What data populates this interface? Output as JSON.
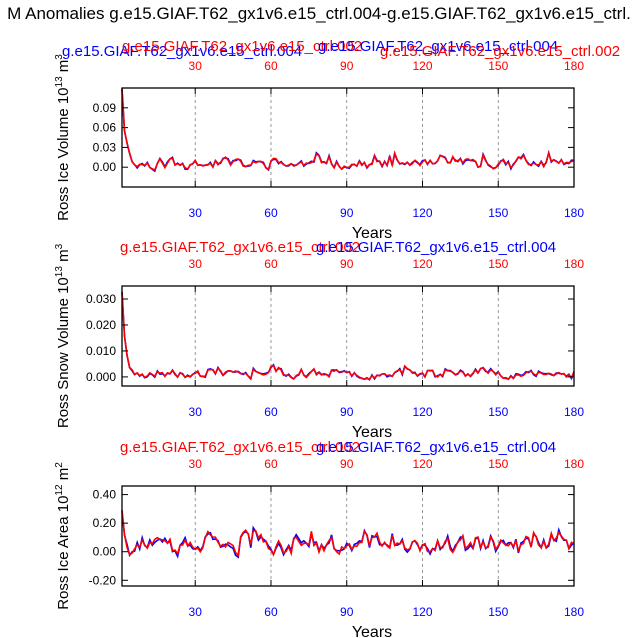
{
  "page_title": "M Anomalies g.e15.GIAF.T62_gx1v6.e15_ctrl.004-g.e15.GIAF.T62_gx1v6.e15_ctrl.",
  "colors": {
    "series_a": "#0000ff",
    "series_b": "#ff0000",
    "axis": "#000000",
    "grid": "#7f7f7f"
  },
  "chart_data": [
    {
      "type": "line",
      "ylabel": "Ross Ice Volume 10",
      "ylabel_exp": "13",
      "ylabel_unit": " m",
      "ylabel_unit_exp": "3",
      "xlabel": "Years",
      "top_left_label": "g.e15.GIAF.T62_gx1v6.e15_ctrl.004",
      "top_left_label_over": "g.e15.GIAF.T62_gx1v6.e15_ctrl.002",
      "top_right_label": "g.e15.GIAF.T62_gx1v6.e15_ctrl.004",
      "top_right_label_over": "g.e15.GIAF.T62_gx1v6.e15_ctrl.002",
      "xlim": [
        1,
        180
      ],
      "ylim": [
        -0.03,
        0.12
      ],
      "xticks": [
        "30",
        "60",
        "90",
        "120",
        "150",
        "180"
      ],
      "yticks": [
        "0.09",
        "0.06",
        "0.03",
        "0.00"
      ],
      "series": [
        {
          "name": "g.e15.GIAF.T62_gx1v6.e15_ctrl.004",
          "color": "#0000ff"
        },
        {
          "name": "g.e15.GIAF.T62_gx1v6.e15_ctrl.002",
          "color": "#ff0000"
        }
      ]
    },
    {
      "type": "line",
      "ylabel": "Ross Snow Volume 10",
      "ylabel_exp": "13",
      "ylabel_unit": " m",
      "ylabel_unit_exp": "3",
      "xlabel": "Years",
      "top_left_label": "g.e15.GIAF.T62_gx1v6.e15_ctrl.002",
      "top_right_label": "g.e15.GIAF.T62_gx1v6.e15_ctrl.004",
      "xlim": [
        1,
        180
      ],
      "ylim": [
        -0.0035,
        0.035
      ],
      "xticks": [
        "30",
        "60",
        "90",
        "120",
        "150",
        "180"
      ],
      "yticks": [
        "0.030",
        "0.020",
        "0.010",
        "0.000"
      ],
      "series": [
        {
          "name": "g.e15.GIAF.T62_gx1v6.e15_ctrl.004",
          "color": "#0000ff"
        },
        {
          "name": "g.e15.GIAF.T62_gx1v6.e15_ctrl.002",
          "color": "#ff0000"
        }
      ]
    },
    {
      "type": "line",
      "ylabel": "Ross Ice Area 10",
      "ylabel_exp": "12",
      "ylabel_unit": " m",
      "ylabel_unit_exp": "2",
      "xlabel": "Years",
      "top_left_label": "g.e15.GIAF.T62_gx1v6.e15_ctrl.002",
      "top_right_label": "g.e15.GIAF.T62_gx1v6.e15_ctrl.004",
      "xlim": [
        1,
        180
      ],
      "ylim": [
        -0.24,
        0.46
      ],
      "xticks": [
        "30",
        "60",
        "90",
        "120",
        "150",
        "180"
      ],
      "yticks": [
        "0.40",
        "0.20",
        "0.00",
        "-0.20"
      ],
      "series": [
        {
          "name": "g.e15.GIAF.T62_gx1v6.e15_ctrl.004",
          "color": "#0000ff"
        },
        {
          "name": "g.e15.GIAF.T62_gx1v6.e15_ctrl.002",
          "color": "#ff0000"
        }
      ]
    }
  ]
}
